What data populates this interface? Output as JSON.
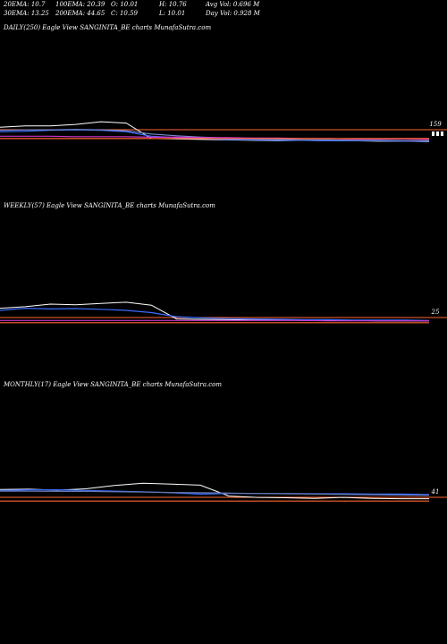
{
  "stats": {
    "row1": [
      "20EMA: 10.7",
      "100EMA: 20.39",
      "O: 10.01",
      "H: 10.76",
      "Avg Vol: 0.696  M"
    ],
    "row2": [
      "30EMA: 13.25",
      "200EMA: 44.65",
      "C: 10.59",
      "L: 10.01",
      "Day Vol: 0.928  M"
    ]
  },
  "panels": {
    "daily": {
      "title": "DAILY(250) Eagle   View  SANGINITA_BE charts MunafaSutra.com",
      "price_label": "159"
    },
    "weekly": {
      "title": "WEEKLY(57) Eagle   View  SANGINITA_BE charts MunafaSutra.com",
      "price_label": "25"
    },
    "monthly": {
      "title": "MONTHLY(17) Eagle   View  SANGINITA_BE charts MunafaSutra.com",
      "price_label": "41"
    }
  },
  "chart_data": [
    {
      "type": "line",
      "title": "DAILY(250) Eagle   View  SANGINITA_BE charts MunafaSutra.com",
      "series": [
        {
          "color": "#ffffff",
          "values": [
            12.6,
            12.9,
            12.9,
            13.2,
            13.8,
            13.5,
            10.1,
            10.0,
            9.9,
            9.8,
            9.7,
            9.6,
            9.7,
            9.6,
            9.6,
            9.5,
            9.5,
            9.4
          ]
        },
        {
          "color": "#3a6cff",
          "values": [
            11.6,
            11.7,
            11.9,
            12.0,
            11.9,
            11.6,
            10.6,
            10.3,
            10.1,
            9.9,
            9.8,
            9.7,
            9.7,
            9.6,
            9.6,
            9.6,
            9.5,
            9.5
          ]
        },
        {
          "color": "#7788cc",
          "values": [
            11.9,
            12.0,
            12.0,
            12.1,
            12.0,
            11.8,
            11.1,
            10.7,
            10.4,
            10.2,
            10.0,
            9.9,
            9.8,
            9.8,
            9.7,
            9.7,
            9.6,
            9.6
          ]
        },
        {
          "color": "#cc33cc",
          "values": [
            10.6,
            10.6,
            10.6,
            10.5,
            10.5,
            10.5,
            10.4,
            10.4,
            10.3,
            10.3,
            10.2,
            10.2,
            10.1,
            10.1,
            10.0,
            10.0,
            10.0,
            9.9
          ]
        },
        {
          "color": "#ff6633",
          "values": [
            10.1,
            10.1,
            10.1,
            10.1,
            10.1,
            10.1,
            10.1,
            10.1,
            10.1,
            10.1,
            10.1,
            10.1,
            10.1,
            10.1,
            10.1,
            10.1,
            10.1,
            10.1
          ]
        }
      ],
      "price_label": "159",
      "grid": false
    },
    {
      "type": "line",
      "title": "WEEKLY(57) Eagle   View  SANGINITA_BE charts MunafaSutra.com",
      "series": [
        {
          "color": "#ffffff",
          "values": [
            8.2,
            8.6,
            9.3,
            9.1,
            9.5,
            9.8,
            9.0,
            5.3,
            5.2,
            5.1,
            5.0,
            5.0,
            4.9,
            4.9,
            4.9,
            4.8,
            4.8,
            4.8
          ]
        },
        {
          "color": "#3a6cff",
          "values": [
            7.6,
            8.2,
            8.0,
            8.1,
            7.9,
            7.6,
            7.0,
            5.9,
            5.6,
            5.4,
            5.3,
            5.2,
            5.1,
            5.1,
            5.0,
            5.0,
            5.0,
            4.9
          ]
        },
        {
          "color": "#cc33cc",
          "values": [
            4.9,
            4.9,
            4.9,
            4.9,
            4.9,
            4.9,
            4.9,
            4.9,
            4.9,
            4.9,
            4.9,
            4.9,
            4.9,
            4.8,
            4.8,
            4.8,
            4.8,
            4.8
          ]
        },
        {
          "color": "#ff6633",
          "values": [
            4.3,
            4.3,
            4.3,
            4.3,
            4.3,
            4.3,
            4.3,
            4.3,
            4.3,
            4.3,
            4.3,
            4.3,
            4.3,
            4.3,
            4.3,
            4.3,
            4.3,
            4.3
          ]
        }
      ],
      "price_label": "25",
      "grid": false
    },
    {
      "type": "line",
      "title": "MONTHLY(17) Eagle   View  SANGINITA_BE charts MunafaSutra.com",
      "series": [
        {
          "color": "#ffffff",
          "values": [
            9.0,
            9.1,
            8.8,
            9.2,
            10.2,
            10.9,
            10.6,
            10.3,
            7.0,
            6.6,
            6.5,
            6.3,
            6.6,
            6.3,
            6.2,
            6.2
          ]
        },
        {
          "color": "#3a6cff",
          "values": [
            8.7,
            8.9,
            8.9,
            8.7,
            8.5,
            8.3,
            8.0,
            7.6,
            7.8,
            7.8,
            7.8,
            7.7,
            7.7,
            7.6,
            7.6,
            7.5
          ]
        },
        {
          "color": "#6677aa",
          "values": [
            8.5,
            8.5,
            8.4,
            8.4,
            8.3,
            8.2,
            8.1,
            8.0,
            7.9,
            7.8,
            7.7,
            7.6,
            7.5,
            7.4,
            7.3,
            7.2
          ]
        },
        {
          "color": "#ff6633",
          "values": [
            5.5,
            5.5,
            5.5,
            5.5,
            5.5,
            5.5,
            5.5,
            5.5,
            5.5,
            5.5,
            5.5,
            5.5,
            5.5,
            5.5,
            5.5,
            5.5
          ]
        }
      ],
      "price_label": "41",
      "grid": false
    }
  ]
}
